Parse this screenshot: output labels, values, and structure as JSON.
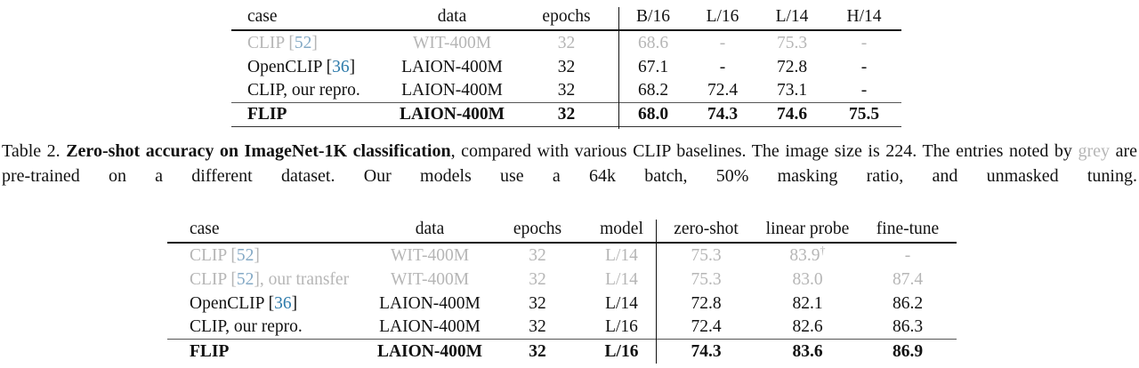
{
  "colors": {
    "text": "#111111",
    "grey_entry": "#b6b6b6",
    "citation_blue": "#2e7bab",
    "citation_blue_muted": "#85aac6",
    "rule": "#111111"
  },
  "table1": {
    "headers": {
      "case": "case",
      "data": "data",
      "epochs": "epochs",
      "c1": "B/16",
      "c2": "L/16",
      "c3": "L/14",
      "c4": "H/14"
    },
    "rows": [
      {
        "case_pre": "CLIP [",
        "cite": "52",
        "case_post": "]",
        "data": "WIT-400M",
        "epochs": "32",
        "v1": "68.6",
        "v2": "-",
        "v3": "75.3",
        "v4": "-"
      },
      {
        "case_pre": "OpenCLIP [",
        "cite": "36",
        "case_post": "]",
        "data": "LAION-400M",
        "epochs": "32",
        "v1": "67.1",
        "v2": "-",
        "v3": "72.8",
        "v4": "-"
      },
      {
        "case_pre": "CLIP, our repro.",
        "cite": "",
        "case_post": "",
        "data": "LAION-400M",
        "epochs": "32",
        "v1": "68.2",
        "v2": "72.4",
        "v3": "73.1",
        "v4": "-"
      },
      {
        "case_pre": "FLIP",
        "cite": "",
        "case_post": "",
        "data": "LAION-400M",
        "epochs": "32",
        "v1": "68.0",
        "v2": "74.3",
        "v3": "74.6",
        "v4": "75.5"
      }
    ]
  },
  "caption": {
    "prefix": "Table 2. ",
    "bold": "Zero-shot accuracy on ImageNet-1K classification",
    "mid": ", compared with various CLIP baselines. The image size is 224. The entries noted by ",
    "grey_word": "grey",
    "suffix": " are pre-trained on a different dataset. Our models use a 64k batch, 50% masking ratio, and unmasked tuning."
  },
  "table2": {
    "headers": {
      "case": "case",
      "data": "data",
      "epochs": "epochs",
      "model": "model",
      "c1": "zero-shot",
      "c2": "linear probe",
      "c3": "fine-tune"
    },
    "rows": [
      {
        "case_pre": "CLIP [",
        "cite": "52",
        "case_post": "]",
        "data": "WIT-400M",
        "epochs": "32",
        "model": "L/14",
        "v1": "75.3",
        "v2": "83.9",
        "v2sup": "†",
        "v3": "-"
      },
      {
        "case_pre": "CLIP [",
        "cite": "52",
        "case_post": "], our transfer",
        "data": "WIT-400M",
        "epochs": "32",
        "model": "L/14",
        "v1": "75.3",
        "v2": "83.0",
        "v2sup": "",
        "v3": "87.4"
      },
      {
        "case_pre": "OpenCLIP [",
        "cite": "36",
        "case_post": "]",
        "data": "LAION-400M",
        "epochs": "32",
        "model": "L/14",
        "v1": "72.8",
        "v2": "82.1",
        "v2sup": "",
        "v3": "86.2"
      },
      {
        "case_pre": "CLIP, our repro.",
        "cite": "",
        "case_post": "",
        "data": "LAION-400M",
        "epochs": "32",
        "model": "L/16",
        "v1": "72.4",
        "v2": "82.6",
        "v2sup": "",
        "v3": "86.3"
      },
      {
        "case_pre": "FLIP",
        "cite": "",
        "case_post": "",
        "data": "LAION-400M",
        "epochs": "32",
        "model": "L/16",
        "v1": "74.3",
        "v2": "83.6",
        "v2sup": "",
        "v3": "86.9"
      }
    ]
  }
}
